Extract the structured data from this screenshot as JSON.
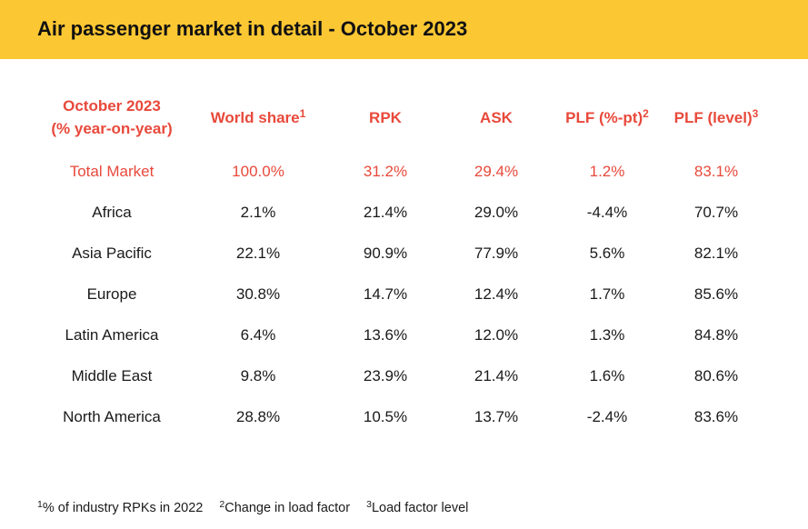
{
  "title": "Air passenger market in detail - October 2023",
  "columns": [
    {
      "line1": "October 2023",
      "line2": "(% year-on-year)",
      "sup": ""
    },
    {
      "label": "World share",
      "sup": "1"
    },
    {
      "label": "RPK",
      "sup": ""
    },
    {
      "label": "ASK",
      "sup": ""
    },
    {
      "label": "PLF (%-pt)",
      "sup": "2"
    },
    {
      "label": "PLF (level)",
      "sup": "3"
    }
  ],
  "rows": [
    [
      "Total Market",
      "100.0%",
      "31.2%",
      "29.4%",
      "1.2%",
      "83.1%"
    ],
    [
      "Africa",
      "2.1%",
      "21.4%",
      "29.0%",
      "-4.4%",
      "70.7%"
    ],
    [
      "Asia Pacific",
      "22.1%",
      "90.9%",
      "77.9%",
      "5.6%",
      "82.1%"
    ],
    [
      "Europe",
      "30.8%",
      "14.7%",
      "12.4%",
      "1.7%",
      "85.6%"
    ],
    [
      "Latin America",
      "6.4%",
      "13.6%",
      "12.0%",
      "1.3%",
      "84.8%"
    ],
    [
      "Middle East",
      "9.8%",
      "23.9%",
      "21.4%",
      "1.6%",
      "80.6%"
    ],
    [
      "North America",
      "28.8%",
      "10.5%",
      "13.7%",
      "-2.4%",
      "83.6%"
    ]
  ],
  "footnotes": [
    {
      "sup": "1",
      "text": "% of industry RPKs in 2022"
    },
    {
      "sup": "2",
      "text": "Change in load factor"
    },
    {
      "sup": "3",
      "text": "Load factor level"
    }
  ],
  "colors": {
    "header_bg": "#FBC733",
    "accent_red": "#E8493B",
    "text": "#1a1a1a"
  }
}
